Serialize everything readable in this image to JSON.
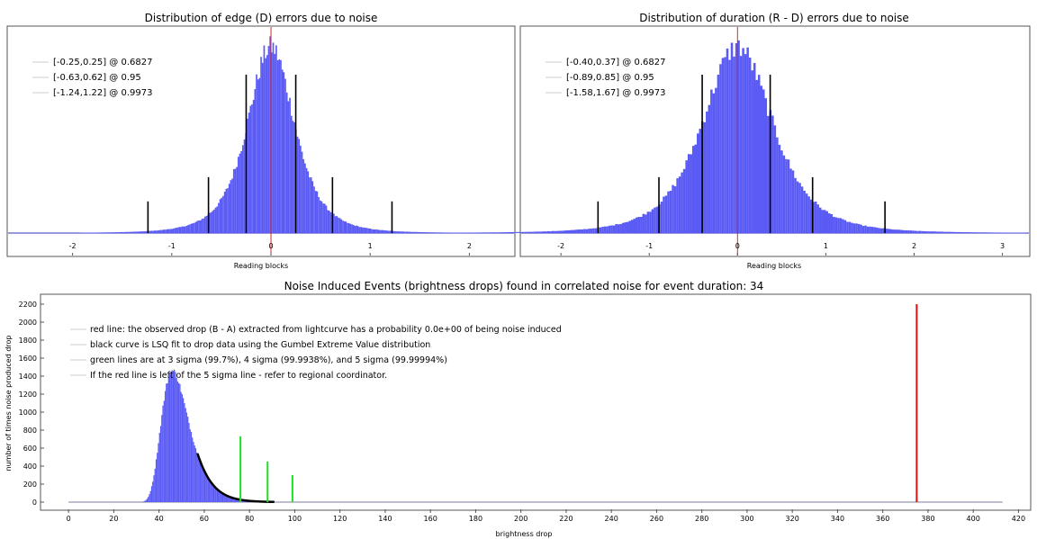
{
  "chart_data": [
    {
      "type": "histogram",
      "title": "Distribution of edge (D) errors due to noise",
      "xlabel": "Reading blocks",
      "xlim": [
        -2.65,
        2.45
      ],
      "xticks": [
        "-2",
        "-1",
        "0",
        "1",
        "2"
      ],
      "xtick_values": [
        -2,
        -1,
        0,
        1,
        2
      ],
      "center": 0.0,
      "spread": 0.25,
      "peak": 1.0,
      "bar_color": "#5a5af5",
      "center_line_color": "#d62a2a",
      "legend_position": "top-left",
      "intervals": [
        {
          "label": "[-0.25,0.25] @ 0.6827",
          "lo": -0.25,
          "hi": 0.25,
          "height": 0.85
        },
        {
          "label": "[-0.63,0.62] @ 0.95",
          "lo": -0.63,
          "hi": 0.62,
          "height": 0.3
        },
        {
          "label": "[-1.24,1.22] @ 0.9973",
          "lo": -1.24,
          "hi": 1.22,
          "height": 0.17
        }
      ]
    },
    {
      "type": "histogram",
      "title": "Distribution of duration (R - D) errors due to noise",
      "xlabel": "Reading blocks",
      "xlim": [
        -2.45,
        3.3
      ],
      "xticks": [
        "-2",
        "-1",
        "0",
        "1",
        "2",
        "3"
      ],
      "xtick_values": [
        -2,
        -1,
        0,
        1,
        2,
        3
      ],
      "center": 0.0,
      "spread": 0.42,
      "peak": 1.0,
      "bar_color": "#5a5af5",
      "center_line_color": "#d62a2a",
      "legend_position": "top-left",
      "intervals": [
        {
          "label": "[-0.40,0.37] @ 0.6827",
          "lo": -0.4,
          "hi": 0.37,
          "height": 0.85
        },
        {
          "label": "[-0.89,0.85] @ 0.95",
          "lo": -0.89,
          "hi": 0.85,
          "height": 0.3
        },
        {
          "label": "[-1.58,1.67] @ 0.9973",
          "lo": -1.58,
          "hi": 1.67,
          "height": 0.17
        }
      ]
    },
    {
      "type": "histogram",
      "title": "Noise Induced Events (brightness drops) found in correlated noise for event duration: 34",
      "xlabel": "brightness drop",
      "ylabel": "number of times noise produced drop",
      "xlim": [
        -12,
        425
      ],
      "ylim": [
        -80,
        2300
      ],
      "xtick_values": [
        0,
        20,
        40,
        60,
        80,
        100,
        120,
        140,
        160,
        180,
        200,
        220,
        240,
        260,
        280,
        300,
        320,
        340,
        360,
        380,
        400,
        420
      ],
      "xticks": [
        "0",
        "20",
        "40",
        "60",
        "80",
        "100",
        "120",
        "140",
        "160",
        "180",
        "200",
        "220",
        "240",
        "260",
        "280",
        "300",
        "320",
        "340",
        "360",
        "380",
        "400",
        "420"
      ],
      "ytick_values": [
        0,
        200,
        400,
        600,
        800,
        1000,
        1200,
        1400,
        1600,
        1800,
        2000,
        2200
      ],
      "yticks": [
        "0",
        "200",
        "400",
        "600",
        "800",
        "1000",
        "1200",
        "1400",
        "1600",
        "1800",
        "2000",
        "2200"
      ],
      "bar_color": "#5a5af5",
      "baseline_end": 413,
      "distribution": {
        "mode": 46,
        "scale": 6,
        "peak": 1460,
        "x_start": 26,
        "x_end": 95
      },
      "gumbel_fit": {
        "x_start": 57,
        "x_end": 91
      },
      "green_lines": [
        {
          "x": 76,
          "value": 730
        },
        {
          "x": 88,
          "value": 450
        },
        {
          "x": 99,
          "value": 300
        }
      ],
      "red_line": {
        "x": 375,
        "value": 2200
      },
      "green_color": "#22dd22",
      "red_color": "#dd1111",
      "legend_position": "top-left",
      "legend": [
        "red line: the observed drop (B - A) extracted from lightcurve has a probability 0.0e+00 of being noise induced",
        "black curve is LSQ fit to drop data using the Gumbel Extreme Value distribution",
        "green lines are at 3 sigma (99.7%), 4 sigma (99.9938%), and 5 sigma (99.99994%)",
        "If the red line is left of the 5 sigma line - refer to regional coordinator."
      ]
    }
  ]
}
